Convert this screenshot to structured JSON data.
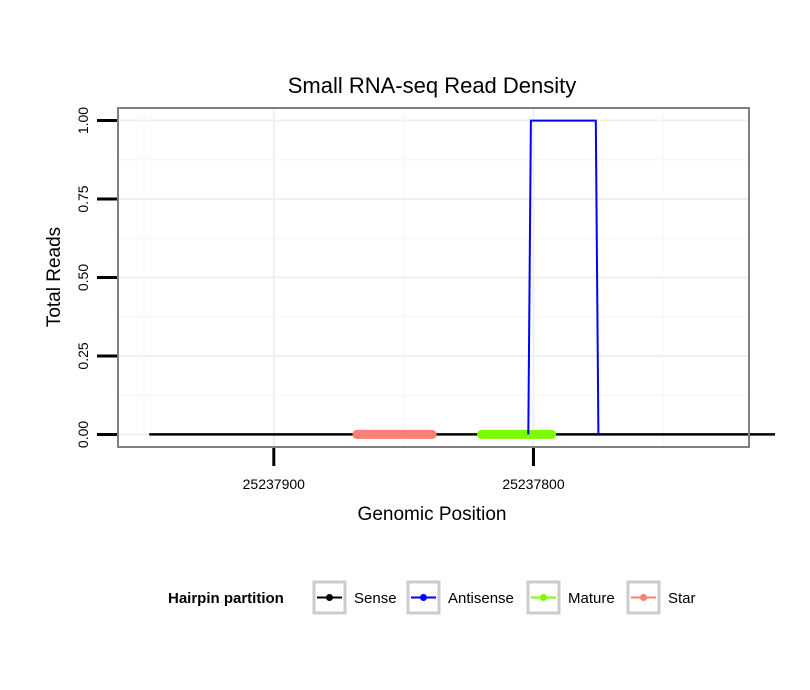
{
  "chart_data": {
    "type": "line",
    "title": "Small RNA-seq Read Density",
    "xlabel": "Genomic Position",
    "ylabel": "Total Reads",
    "x_reversed": true,
    "xlim": [
      25237960,
      25237717
    ],
    "ylim": [
      -0.04,
      1.04
    ],
    "x_ticks": [
      25237900,
      25237800
    ],
    "x_tick_labels": [
      "25237900",
      "25237800"
    ],
    "y_ticks": [
      0,
      0.25,
      0.5,
      0.75,
      1.0
    ],
    "y_tick_labels": [
      "0.00",
      "0.25",
      "0.50",
      "0.75",
      "1.00"
    ],
    "grid": true,
    "legend": {
      "title": "Hairpin partition",
      "position": "bottom",
      "entries": [
        {
          "label": "Sense",
          "color": "#000000"
        },
        {
          "label": "Antisense",
          "color": "#0000ff"
        },
        {
          "label": "Mature",
          "color": "#7cfc00"
        },
        {
          "label": "Star",
          "color": "#fa8072"
        }
      ]
    },
    "series": [
      {
        "name": "Sense",
        "color": "#000000",
        "width": 2.5,
        "x": [
          25237948,
          25237707
        ],
        "y": [
          0,
          0
        ]
      },
      {
        "name": "Star",
        "color": "#fa8072",
        "width": 9,
        "x": [
          25237868,
          25237839
        ],
        "y": [
          0,
          0
        ]
      },
      {
        "name": "Mature",
        "color": "#7cfc00",
        "width": 9,
        "x": [
          25237820,
          25237793
        ],
        "y": [
          0,
          0
        ]
      },
      {
        "name": "Antisense",
        "color": "#0000ff",
        "width": 2,
        "x": [
          25237802,
          25237801,
          25237776,
          25237775
        ],
        "y": [
          0,
          1,
          1,
          0
        ]
      }
    ]
  }
}
